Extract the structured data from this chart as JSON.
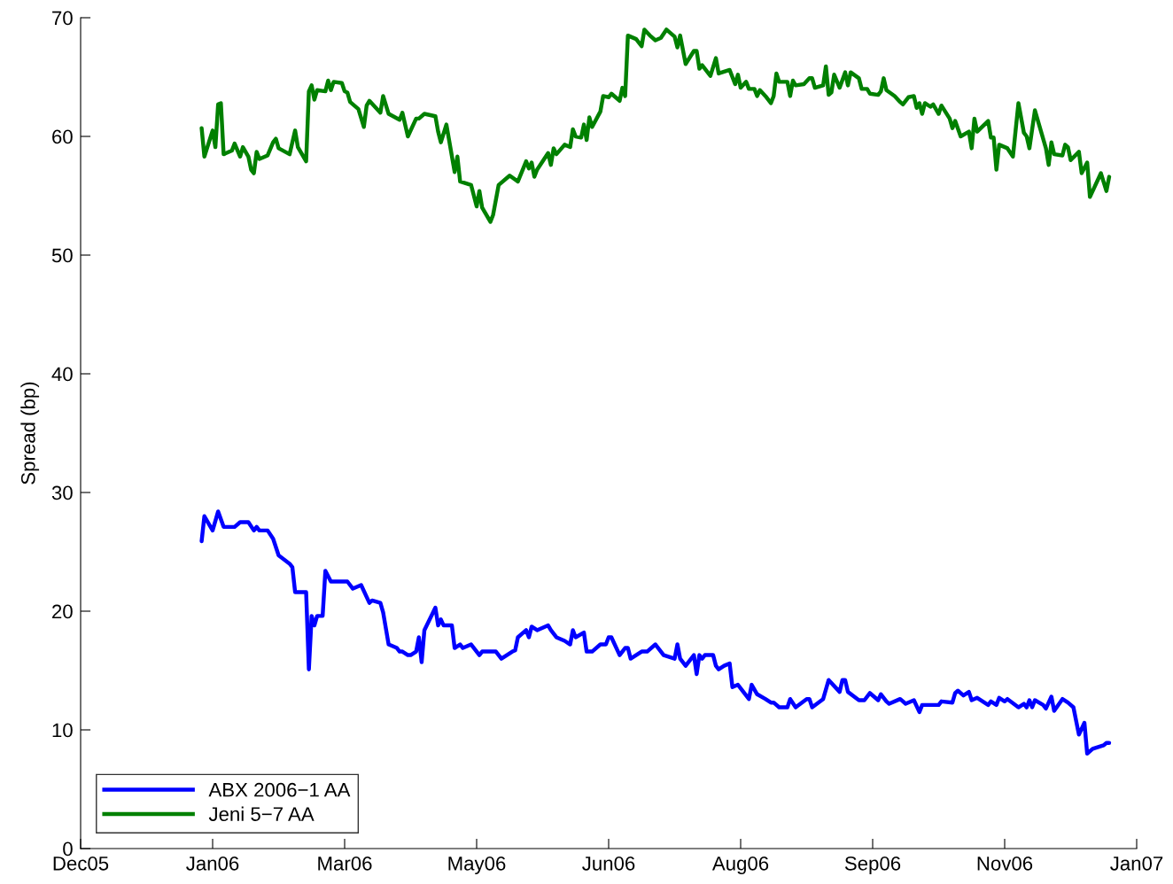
{
  "chart_data": {
    "type": "line",
    "ylabel": "Spread (bp)",
    "xlim": [
      "2005-12-14",
      "2007-01-02"
    ],
    "xticks": [
      {
        "value": "2005-12-14",
        "label": "Dec05"
      },
      {
        "value": "2006-01-31",
        "label": "Jan06"
      },
      {
        "value": "2006-03-20",
        "label": "Mar06"
      },
      {
        "value": "2006-05-07",
        "label": "May06"
      },
      {
        "value": "2006-06-24",
        "label": "Jun06"
      },
      {
        "value": "2006-08-11",
        "label": "Aug06"
      },
      {
        "value": "2006-09-28",
        "label": "Sep06"
      },
      {
        "value": "2006-11-15",
        "label": "Nov06"
      },
      {
        "value": "2007-01-02",
        "label": "Jan07"
      }
    ],
    "ylim": [
      0,
      70
    ],
    "yticks": [
      0,
      10,
      20,
      30,
      40,
      50,
      60,
      70
    ],
    "grid": false,
    "legend": "bottom left",
    "line_style": "solid",
    "marker": "none",
    "series": [
      {
        "name": "ABX 2006−1 AA",
        "color": "#0000ff",
        "x": [
          "2006-01-27",
          "2006-01-28",
          "2006-01-31",
          "2006-02-02",
          "2006-02-04",
          "2006-02-08",
          "2006-02-10",
          "2006-02-13",
          "2006-02-15",
          "2006-02-16",
          "2006-02-17",
          "2006-02-20",
          "2006-02-22",
          "2006-02-24",
          "2006-02-28",
          "2006-03-01",
          "2006-03-02",
          "2006-03-06",
          "2006-03-07",
          "2006-03-08",
          "2006-03-09",
          "2006-03-10",
          "2006-03-12",
          "2006-03-13",
          "2006-03-15",
          "2006-03-21",
          "2006-03-23",
          "2006-03-26",
          "2006-03-29",
          "2006-03-30",
          "2006-04-02",
          "2006-04-03",
          "2006-04-05",
          "2006-04-08",
          "2006-04-09",
          "2006-04-10",
          "2006-04-12",
          "2006-04-13",
          "2006-04-15",
          "2006-04-16",
          "2006-04-17",
          "2006-04-18",
          "2006-04-22",
          "2006-04-23",
          "2006-04-24",
          "2006-04-25",
          "2006-04-28",
          "2006-04-29",
          "2006-05-01",
          "2006-05-02",
          "2006-05-05",
          "2006-05-08",
          "2006-05-09",
          "2006-05-14",
          "2006-05-16",
          "2006-05-18",
          "2006-05-20",
          "2006-05-21",
          "2006-05-22",
          "2006-05-25",
          "2006-05-26",
          "2006-05-27",
          "2006-05-29",
          "2006-06-02",
          "2006-06-03",
          "2006-06-05",
          "2006-06-08",
          "2006-06-10",
          "2006-06-11",
          "2006-06-12",
          "2006-06-15",
          "2006-06-16",
          "2006-06-18",
          "2006-06-21",
          "2006-06-23",
          "2006-06-24",
          "2006-06-25",
          "2006-06-28",
          "2006-06-30",
          "2006-07-01",
          "2006-07-02",
          "2006-07-06",
          "2006-07-08",
          "2006-07-11",
          "2006-07-12",
          "2006-07-14",
          "2006-07-18",
          "2006-07-19",
          "2006-07-20",
          "2006-07-22",
          "2006-07-25",
          "2006-07-26",
          "2006-07-27",
          "2006-07-28",
          "2006-07-29",
          "2006-08-01",
          "2006-08-02",
          "2006-08-03",
          "2006-08-05",
          "2006-08-07",
          "2006-08-08",
          "2006-08-10",
          "2006-08-14",
          "2006-08-15",
          "2006-08-17",
          "2006-08-20",
          "2006-08-22",
          "2006-08-23",
          "2006-08-25",
          "2006-08-28",
          "2006-08-29",
          "2006-08-31",
          "2006-09-04",
          "2006-09-05",
          "2006-09-06",
          "2006-09-10",
          "2006-09-12",
          "2006-09-16",
          "2006-09-17",
          "2006-09-18",
          "2006-09-19",
          "2006-09-23",
          "2006-09-25",
          "2006-09-27",
          "2006-09-30",
          "2006-10-01",
          "2006-10-03",
          "2006-10-04",
          "2006-10-08",
          "2006-10-10",
          "2006-10-13",
          "2006-10-15",
          "2006-10-16",
          "2006-10-22",
          "2006-10-23",
          "2006-10-27",
          "2006-10-28",
          "2006-10-29",
          "2006-10-31",
          "2006-11-02",
          "2006-11-03",
          "2006-11-05",
          "2006-11-09",
          "2006-11-10",
          "2006-11-12",
          "2006-11-13",
          "2006-11-15",
          "2006-11-16",
          "2006-11-20",
          "2006-11-22",
          "2006-11-23",
          "2006-11-24",
          "2006-11-25",
          "2006-11-26",
          "2006-11-29",
          "2006-11-30",
          "2006-12-02",
          "2006-12-03",
          "2006-12-06",
          "2006-12-08",
          "2006-12-10",
          "2006-12-12",
          "2006-12-14",
          "2006-12-15",
          "2006-12-17",
          "2006-12-21",
          "2006-12-22",
          "2006-12-23"
        ],
        "values": [
          25.9,
          28.0,
          26.8,
          28.4,
          27.1,
          27.1,
          27.5,
          27.5,
          26.8,
          27.1,
          26.8,
          26.8,
          26.1,
          24.7,
          24.0,
          23.7,
          21.6,
          21.6,
          15.1,
          19.6,
          18.8,
          19.6,
          19.6,
          23.4,
          22.5,
          22.5,
          21.9,
          22.2,
          20.7,
          20.9,
          20.7,
          19.9,
          17.2,
          16.9,
          16.6,
          16.6,
          16.3,
          16.3,
          16.6,
          17.8,
          15.7,
          18.4,
          20.3,
          18.8,
          19.3,
          18.8,
          18.8,
          16.9,
          17.2,
          16.9,
          17.2,
          16.3,
          16.6,
          16.6,
          16.0,
          16.3,
          16.6,
          16.7,
          17.8,
          18.4,
          17.8,
          18.7,
          18.4,
          18.8,
          18.4,
          17.8,
          17.5,
          17.2,
          18.4,
          17.8,
          18.2,
          16.6,
          16.6,
          17.2,
          17.2,
          17.8,
          17.8,
          16.3,
          16.9,
          16.9,
          16.0,
          16.6,
          16.6,
          17.2,
          16.9,
          16.3,
          16.0,
          17.2,
          16.0,
          15.4,
          16.3,
          14.7,
          16.3,
          16.0,
          16.3,
          16.3,
          15.4,
          15.1,
          15.4,
          15.6,
          13.6,
          13.8,
          12.6,
          13.8,
          13.0,
          12.6,
          12.3,
          12.3,
          11.9,
          11.9,
          12.6,
          11.9,
          12.6,
          12.6,
          11.9,
          12.6,
          14.2,
          13.2,
          14.2,
          14.2,
          13.2,
          12.5,
          12.5,
          13.1,
          12.5,
          13.0,
          12.4,
          12.2,
          12.6,
          12.2,
          12.5,
          11.5,
          12.1,
          12.1,
          12.4,
          12.3,
          13.1,
          13.3,
          12.9,
          13.2,
          12.5,
          12.7,
          12.1,
          12.4,
          12.1,
          12.7,
          12.4,
          12.6,
          11.9,
          12.2,
          11.9,
          12.5,
          11.9,
          12.5,
          12.1,
          11.8,
          12.8,
          11.6,
          12.6,
          12.3,
          11.9,
          9.6,
          10.6,
          8.0,
          8.4,
          8.7,
          8.9,
          8.9
        ]
      },
      {
        "name": "Jeni 5−7 AA",
        "color": "#008000",
        "x": [
          "2006-01-27",
          "2006-01-28",
          "2006-01-31",
          "2006-02-01",
          "2006-02-02",
          "2006-02-03",
          "2006-02-04",
          "2006-02-07",
          "2006-02-08",
          "2006-02-10",
          "2006-02-11",
          "2006-02-13",
          "2006-02-14",
          "2006-02-15",
          "2006-02-16",
          "2006-02-17",
          "2006-02-20",
          "2006-02-22",
          "2006-02-23",
          "2006-02-24",
          "2006-02-28",
          "2006-03-02",
          "2006-03-03",
          "2006-03-06",
          "2006-03-07",
          "2006-03-08",
          "2006-03-09",
          "2006-03-10",
          "2006-03-13",
          "2006-03-14",
          "2006-03-15",
          "2006-03-16",
          "2006-03-19",
          "2006-03-20",
          "2006-03-21",
          "2006-03-22",
          "2006-03-25",
          "2006-03-27",
          "2006-03-28",
          "2006-03-29",
          "2006-04-02",
          "2006-04-03",
          "2006-04-05",
          "2006-04-09",
          "2006-04-10",
          "2006-04-12",
          "2006-04-15",
          "2006-04-16",
          "2006-04-18",
          "2006-04-22",
          "2006-04-23",
          "2006-04-24",
          "2006-04-26",
          "2006-04-29",
          "2006-04-30",
          "2006-05-01",
          "2006-05-05",
          "2006-05-07",
          "2006-05-08",
          "2006-05-09",
          "2006-05-12",
          "2006-05-13",
          "2006-05-15",
          "2006-05-19",
          "2006-05-22",
          "2006-05-25",
          "2006-05-26",
          "2006-05-27",
          "2006-05-28",
          "2006-05-29",
          "2006-06-02",
          "2006-06-03",
          "2006-06-04",
          "2006-06-05",
          "2006-06-08",
          "2006-06-10",
          "2006-06-11",
          "2006-06-12",
          "2006-06-14",
          "2006-06-15",
          "2006-06-16",
          "2006-06-17",
          "2006-06-18",
          "2006-06-21",
          "2006-06-22",
          "2006-06-24",
          "2006-06-25",
          "2006-06-28",
          "2006-06-29",
          "2006-06-30",
          "2006-07-01",
          "2006-07-04",
          "2006-07-06",
          "2006-07-07",
          "2006-07-09",
          "2006-07-11",
          "2006-07-13",
          "2006-07-15",
          "2006-07-18",
          "2006-07-19",
          "2006-07-20",
          "2006-07-22",
          "2006-07-25",
          "2006-07-26",
          "2006-07-27",
          "2006-07-28",
          "2006-07-31",
          "2006-08-02",
          "2006-08-03",
          "2006-08-07",
          "2006-08-09",
          "2006-08-10",
          "2006-08-11",
          "2006-08-13",
          "2006-08-14",
          "2006-08-16",
          "2006-08-17",
          "2006-08-18",
          "2006-08-20",
          "2006-08-22",
          "2006-08-23",
          "2006-08-24",
          "2006-08-25",
          "2006-08-28",
          "2006-08-29",
          "2006-08-30",
          "2006-08-31",
          "2006-09-03",
          "2006-09-05",
          "2006-09-06",
          "2006-09-07",
          "2006-09-10",
          "2006-09-11",
          "2006-09-12",
          "2006-09-13",
          "2006-09-14",
          "2006-09-16",
          "2006-09-18",
          "2006-09-19",
          "2006-09-20",
          "2006-09-23",
          "2006-09-24",
          "2006-09-26",
          "2006-09-27",
          "2006-09-30",
          "2006-10-01",
          "2006-10-02",
          "2006-10-03",
          "2006-10-06",
          "2006-10-08",
          "2006-10-09",
          "2006-10-11",
          "2006-10-13",
          "2006-10-14",
          "2006-10-15",
          "2006-10-16",
          "2006-10-17",
          "2006-10-19",
          "2006-10-20",
          "2006-10-22",
          "2006-10-23",
          "2006-10-26",
          "2006-10-27",
          "2006-10-28",
          "2006-10-30",
          "2006-11-02",
          "2006-11-03",
          "2006-11-04",
          "2006-11-05",
          "2006-11-09",
          "2006-11-10",
          "2006-11-11",
          "2006-11-12",
          "2006-11-13",
          "2006-11-16",
          "2006-11-18",
          "2006-11-20",
          "2006-11-22",
          "2006-11-23",
          "2006-11-24",
          "2006-11-26",
          "2006-11-30",
          "2006-12-01",
          "2006-12-02",
          "2006-12-03",
          "2006-12-06",
          "2006-12-07",
          "2006-12-08",
          "2006-12-09",
          "2006-12-12",
          "2006-12-13",
          "2006-12-15",
          "2006-12-16",
          "2006-12-20",
          "2006-12-22",
          "2006-12-23"
        ],
        "values": [
          60.7,
          58.3,
          60.5,
          59.1,
          62.7,
          62.8,
          58.5,
          58.8,
          59.4,
          58.3,
          59.1,
          58.3,
          57.2,
          56.9,
          58.7,
          58.1,
          58.4,
          59.5,
          59.8,
          59.0,
          58.5,
          60.5,
          59.1,
          57.9,
          63.8,
          64.3,
          63.1,
          63.9,
          63.8,
          64.7,
          63.9,
          64.6,
          64.5,
          63.8,
          63.7,
          62.9,
          62.3,
          60.8,
          62.6,
          63.0,
          62.0,
          63.4,
          61.9,
          61.4,
          62.0,
          60.0,
          61.5,
          61.5,
          61.9,
          61.7,
          60.4,
          59.5,
          61.0,
          57.0,
          58.3,
          56.2,
          55.9,
          54.1,
          55.4,
          54.0,
          52.8,
          53.4,
          55.9,
          56.7,
          56.2,
          57.9,
          57.3,
          57.8,
          56.6,
          57.2,
          58.6,
          57.6,
          59.0,
          58.5,
          59.3,
          59.1,
          60.6,
          60.0,
          59.9,
          61.0,
          59.7,
          61.6,
          60.8,
          62.1,
          63.4,
          63.3,
          63.6,
          63.0,
          64.1,
          63.4,
          68.5,
          68.2,
          67.6,
          69.0,
          68.5,
          68.1,
          68.3,
          69.0,
          68.4,
          67.5,
          68.5,
          66.1,
          67.2,
          67.2,
          65.7,
          66.0,
          65.1,
          66.6,
          65.3,
          65.6,
          64.4,
          65.2,
          64.1,
          64.6,
          64.0,
          64.0,
          63.4,
          63.9,
          63.4,
          62.8,
          63.4,
          65.3,
          64.6,
          64.6,
          63.4,
          64.7,
          64.3,
          64.4,
          64.9,
          64.9,
          64.1,
          64.3,
          65.9,
          63.5,
          63.7,
          65.2,
          64.1,
          65.4,
          64.3,
          65.4,
          64.9,
          64.0,
          64.0,
          63.6,
          63.5,
          63.8,
          64.9,
          63.9,
          63.4,
          62.9,
          62.7,
          63.3,
          63.4,
          62.4,
          62.8,
          61.9,
          62.8,
          62.5,
          62.7,
          61.9,
          62.6,
          61.5,
          60.7,
          61.3,
          60.0,
          60.4,
          59.0,
          61.5,
          60.4,
          61.3,
          59.9,
          59.9,
          57.2,
          59.3,
          59.0,
          58.3,
          62.8,
          60.3,
          60.0,
          59.0,
          62.2,
          59.0,
          57.6,
          59.5,
          58.5,
          58.4,
          59.3,
          59.1,
          58.0,
          58.7,
          56.9,
          57.8,
          54.9,
          56.9,
          55.4,
          56.6
        ]
      }
    ]
  }
}
